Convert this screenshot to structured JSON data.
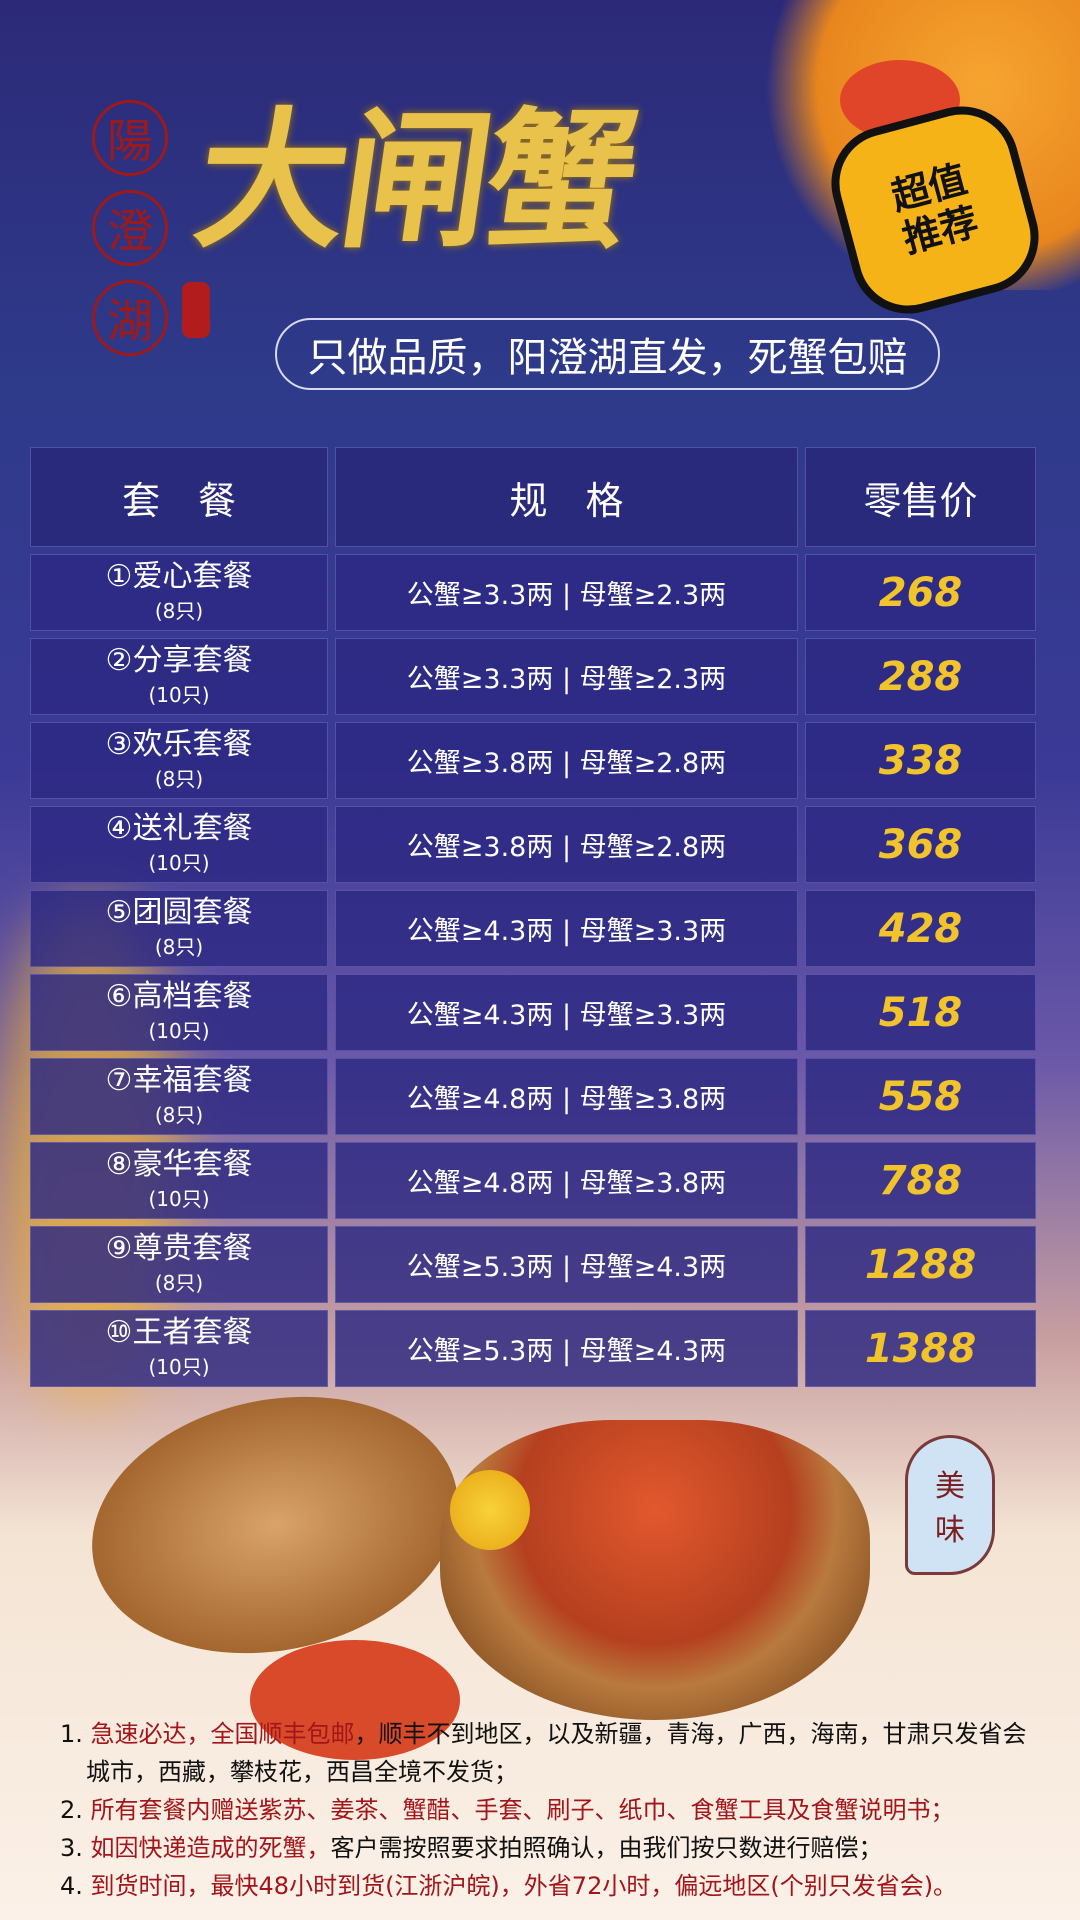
{
  "brand": {
    "seal": [
      "陽",
      "澄",
      "湖"
    ],
    "title": "大闸蟹",
    "badge": [
      "超值",
      "推荐"
    ],
    "slogan": "只做品质，阳澄湖直发，死蟹包赔"
  },
  "table": {
    "headers": [
      "套　餐",
      "规　格",
      "零售价"
    ],
    "rows": [
      {
        "name": "①爱心套餐",
        "qty": "(8只)",
        "spec": "公蟹≥3.3两 | 母蟹≥2.3两",
        "price": "268"
      },
      {
        "name": "②分享套餐",
        "qty": "(10只)",
        "spec": "公蟹≥3.3两 | 母蟹≥2.3两",
        "price": "288"
      },
      {
        "name": "③欢乐套餐",
        "qty": "(8只)",
        "spec": "公蟹≥3.8两 | 母蟹≥2.8两",
        "price": "338"
      },
      {
        "name": "④送礼套餐",
        "qty": "(10只)",
        "spec": "公蟹≥3.8两 | 母蟹≥2.8两",
        "price": "368"
      },
      {
        "name": "⑤团圆套餐",
        "qty": "(8只)",
        "spec": "公蟹≥4.3两 | 母蟹≥3.3两",
        "price": "428"
      },
      {
        "name": "⑥高档套餐",
        "qty": "(10只)",
        "spec": "公蟹≥4.3两 | 母蟹≥3.3两",
        "price": "518"
      },
      {
        "name": "⑦幸福套餐",
        "qty": "(8只)",
        "spec": "公蟹≥4.8两 | 母蟹≥3.8两",
        "price": "558"
      },
      {
        "name": "⑧豪华套餐",
        "qty": "(10只)",
        "spec": "公蟹≥4.8两 | 母蟹≥3.8两",
        "price": "788"
      },
      {
        "name": "⑨尊贵套餐",
        "qty": "(8只)",
        "spec": "公蟹≥5.3两 | 母蟹≥4.3两",
        "price": "1288"
      },
      {
        "name": "⑩王者套餐",
        "qty": "(10只)",
        "spec": "公蟹≥5.3两 | 母蟹≥4.3两",
        "price": "1388"
      }
    ]
  },
  "taste": [
    "美",
    "味"
  ],
  "notes": [
    {
      "n": "1. ",
      "red": "急速必达，全国顺丰包邮",
      "rest": "，顺丰不到地区，以及新疆，青海，广西，海南，甘肃只发省会城市，西藏，攀枝花，西昌全境不发货；"
    },
    {
      "n": "2. ",
      "red": "所有套餐内赠送紫苏、姜茶、蟹醋、手套、刷子、纸巾、食蟹工具及食蟹说明书；",
      "rest": ""
    },
    {
      "n": "3. ",
      "red": "如因快递造成的死蟹，",
      "rest": "客户需按照要求拍照确认，由我们按只数进行赔偿；"
    },
    {
      "n": "4. ",
      "red": "到货时间，最快48小时到货(江浙沪皖)，外省72小时，偏远地区(个别只发省会)。",
      "rest": ""
    }
  ],
  "colors": {
    "price": "#f2c42c",
    "title_gold": "#e8c24a",
    "seal_red": "#9e1a1a",
    "note_red": "#a3151a"
  }
}
